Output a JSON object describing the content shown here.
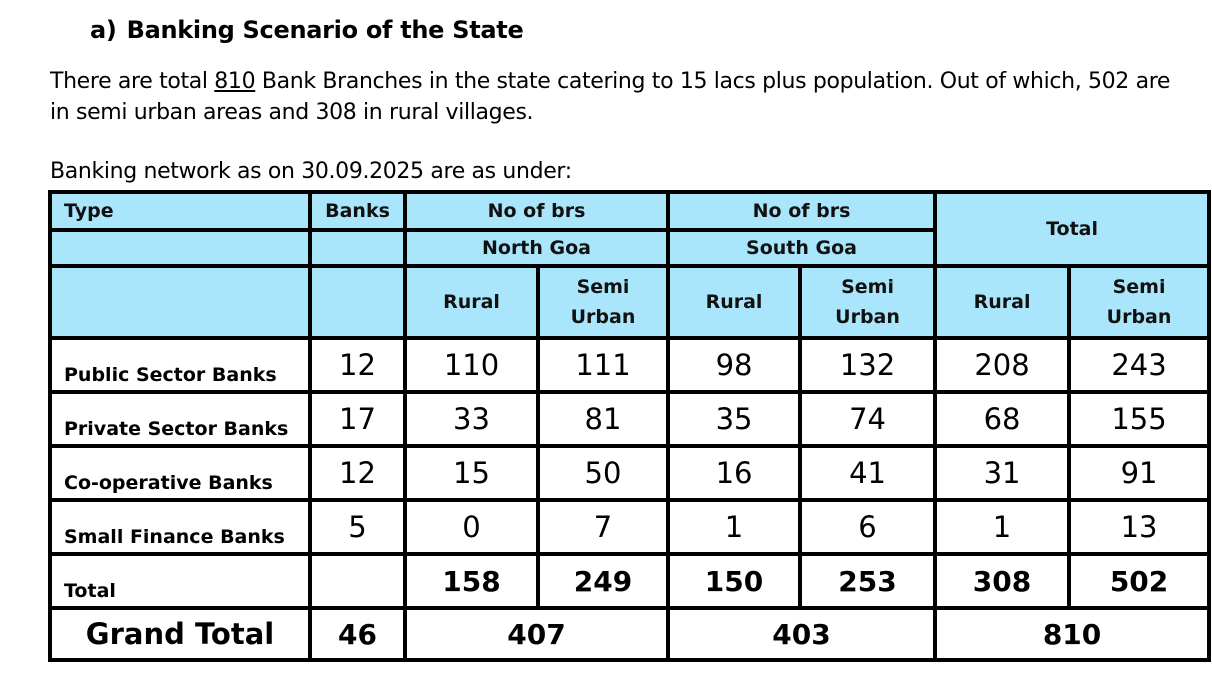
{
  "heading": {
    "number": "a)",
    "title": "Banking Scenario of the State"
  },
  "paragraph": {
    "part1": "There are total ",
    "branches": "810",
    "part2": " Bank Branches in the state catering to 15 lacs plus population. Out of which, 502 are in semi urban areas and 308 in rural villages."
  },
  "caption": "Banking network as on 30.09.2025 are as under:",
  "table": {
    "header": {
      "type": "Type",
      "banks": "Banks",
      "no_of_brs_north": "No of brs",
      "no_of_brs_south": "No of brs",
      "total": "Total",
      "north_goa": "North Goa",
      "south_goa": "South Goa",
      "rural": "Rural",
      "semi": "Semi",
      "urban": "Urban"
    },
    "rows": [
      {
        "type": "Public Sector Banks",
        "banks": "12",
        "north_rural": "110",
        "north_semi": "111",
        "south_rural": "98",
        "south_semi": "132",
        "total_rural": "208",
        "total_semi": "243"
      },
      {
        "type": "Private Sector Banks",
        "banks": "17",
        "north_rural": "33",
        "north_semi": "81",
        "south_rural": "35",
        "south_semi": "74",
        "total_rural": "68",
        "total_semi": "155"
      },
      {
        "type": "Co-operative Banks",
        "banks": "12",
        "north_rural": "15",
        "north_semi": "50",
        "south_rural": "16",
        "south_semi": "41",
        "total_rural": "31",
        "total_semi": "91"
      },
      {
        "type": "Small Finance Banks",
        "banks": "5",
        "north_rural": "0",
        "north_semi": "7",
        "south_rural": "1",
        "south_semi": "6",
        "total_rural": "1",
        "total_semi": "13"
      }
    ],
    "total_row": {
      "label": "Total",
      "north_rural": "158",
      "north_semi": "249",
      "south_rural": "150",
      "south_semi": "253",
      "total_rural": "308",
      "total_semi": "502"
    },
    "grand_total": {
      "label": "Grand Total",
      "banks": "46",
      "north": "407",
      "south": "403",
      "total": "810"
    }
  },
  "colors": {
    "header_bg": "#a9e5fb",
    "border": "#000000"
  }
}
